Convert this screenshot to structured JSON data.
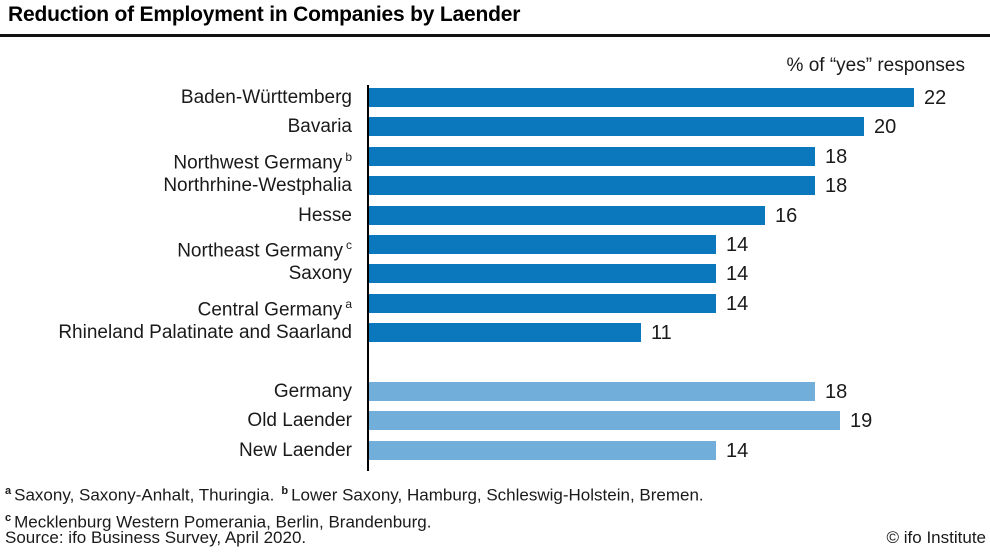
{
  "header": {
    "title": "Reduction of Employment in Companies by Laender"
  },
  "subtitle": "% of “yes” responses",
  "chart_data": {
    "type": "bar",
    "orientation": "horizontal",
    "title": "Reduction of Employment in Companies by Laender",
    "unit_note": "% of “yes” responses",
    "xlim": [
      0,
      24
    ],
    "grid": false,
    "value_labels": true,
    "legend_position": "none",
    "series": [
      {
        "name": "laender",
        "color": "#0b78bd",
        "rows": [
          {
            "label": "Baden-Württemberg",
            "sup": "",
            "value": 22
          },
          {
            "label": "Bavaria",
            "sup": "",
            "value": 20
          },
          {
            "label": "Northwest Germany",
            "sup": "b",
            "value": 18
          },
          {
            "label": "Northrhine-Westphalia",
            "sup": "",
            "value": 18
          },
          {
            "label": "Hesse",
            "sup": "",
            "value": 16
          },
          {
            "label": "Northeast Germany",
            "sup": "c",
            "value": 14
          },
          {
            "label": "Saxony",
            "sup": "",
            "value": 14
          },
          {
            "label": "Central Germany",
            "sup": "a",
            "value": 14
          },
          {
            "label": "Rhineland Palatinate and Saarland",
            "sup": "",
            "value": 11
          }
        ]
      },
      {
        "name": "aggregates",
        "color": "#71aed9",
        "rows": [
          {
            "label": "Germany",
            "sup": "",
            "value": 18
          },
          {
            "label": "Old Laender",
            "sup": "",
            "value": 19
          },
          {
            "label": "New Laender",
            "sup": "",
            "value": 14
          }
        ]
      }
    ]
  },
  "footnotes": {
    "a": {
      "sup": "a",
      "text": "Saxony, Saxony-Anhalt, Thuringia."
    },
    "b": {
      "sup": "b",
      "text": "Lower Saxony, Hamburg, Schleswig-Holstein, Bremen."
    },
    "c": {
      "sup": "c",
      "text": "Mecklenburg Western Pomerania, Berlin, Brandenburg."
    }
  },
  "source": "Source: ifo Business Survey, April 2020.",
  "copyright": "© ifo Institute"
}
